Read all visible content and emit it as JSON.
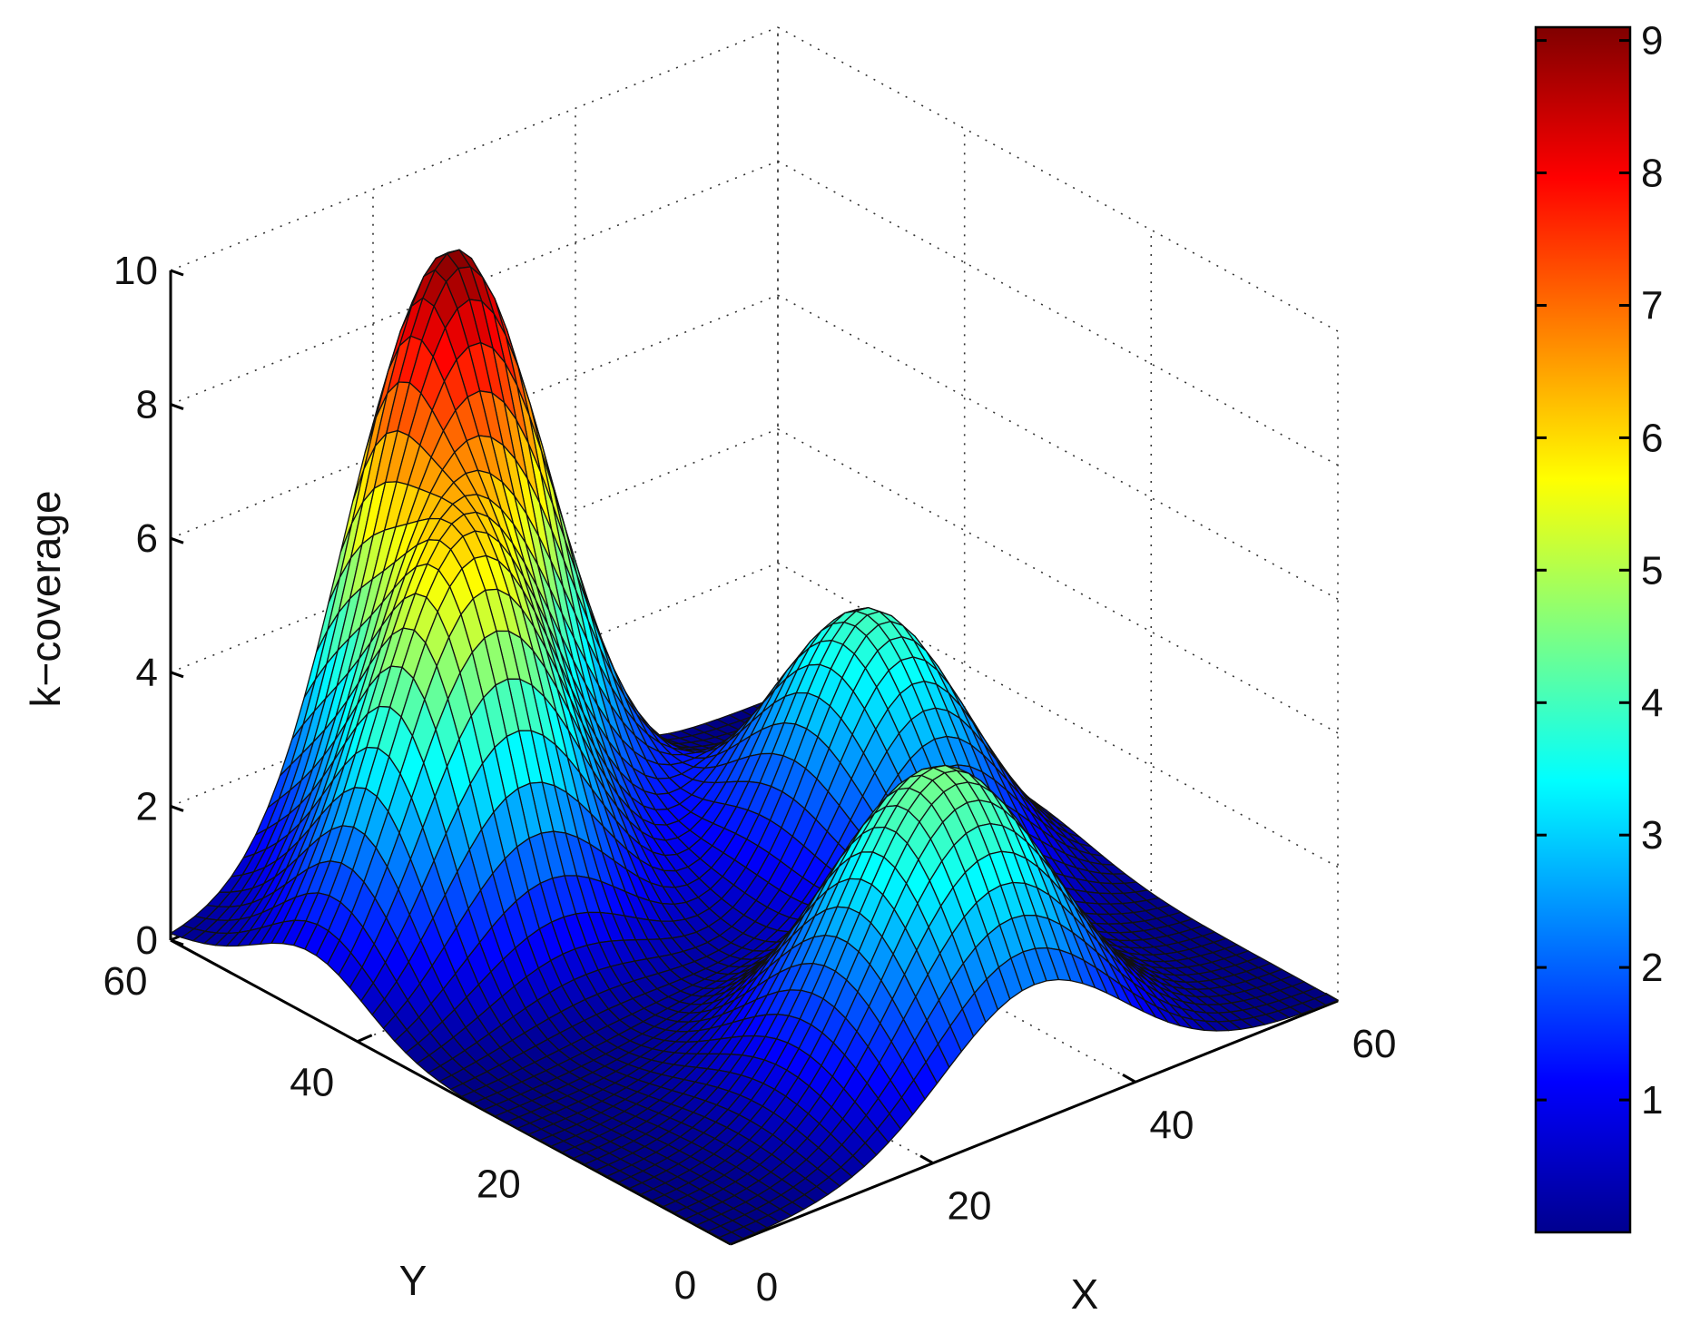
{
  "chart_data": {
    "type": "surface3d",
    "xlabel": "X",
    "ylabel": "Y",
    "zlabel": "k−coverage",
    "xlim": [
      0,
      60
    ],
    "ylim": [
      0,
      60
    ],
    "zlim": [
      0,
      10
    ],
    "x_ticks": [
      "0",
      "20",
      "40",
      "60"
    ],
    "y_ticks": [
      "0",
      "20",
      "40",
      "60"
    ],
    "z_ticks": [
      "0",
      "2",
      "4",
      "6",
      "8",
      "10"
    ],
    "grid": true,
    "colormap": "jet",
    "colorbar": {
      "placement": "right",
      "range": [
        0,
        9.1
      ],
      "ticks": [
        "1",
        "2",
        "3",
        "4",
        "5",
        "6",
        "7",
        "8",
        "9"
      ]
    },
    "grid_resolution": 50,
    "surface_components": [
      {
        "x0": 15,
        "y0": 45,
        "sx": 8,
        "sy": 6,
        "amplitude": 5.5
      },
      {
        "x0": 25,
        "y0": 57,
        "sx": 8,
        "sy": 6,
        "amplitude": 8.7
      },
      {
        "x0": 46,
        "y0": 35,
        "sx": 7,
        "sy": 8,
        "amplitude": 4.0
      },
      {
        "x0": 30,
        "y0": 10,
        "sx": 9,
        "sy": 8,
        "amplitude": 4.5
      }
    ]
  }
}
